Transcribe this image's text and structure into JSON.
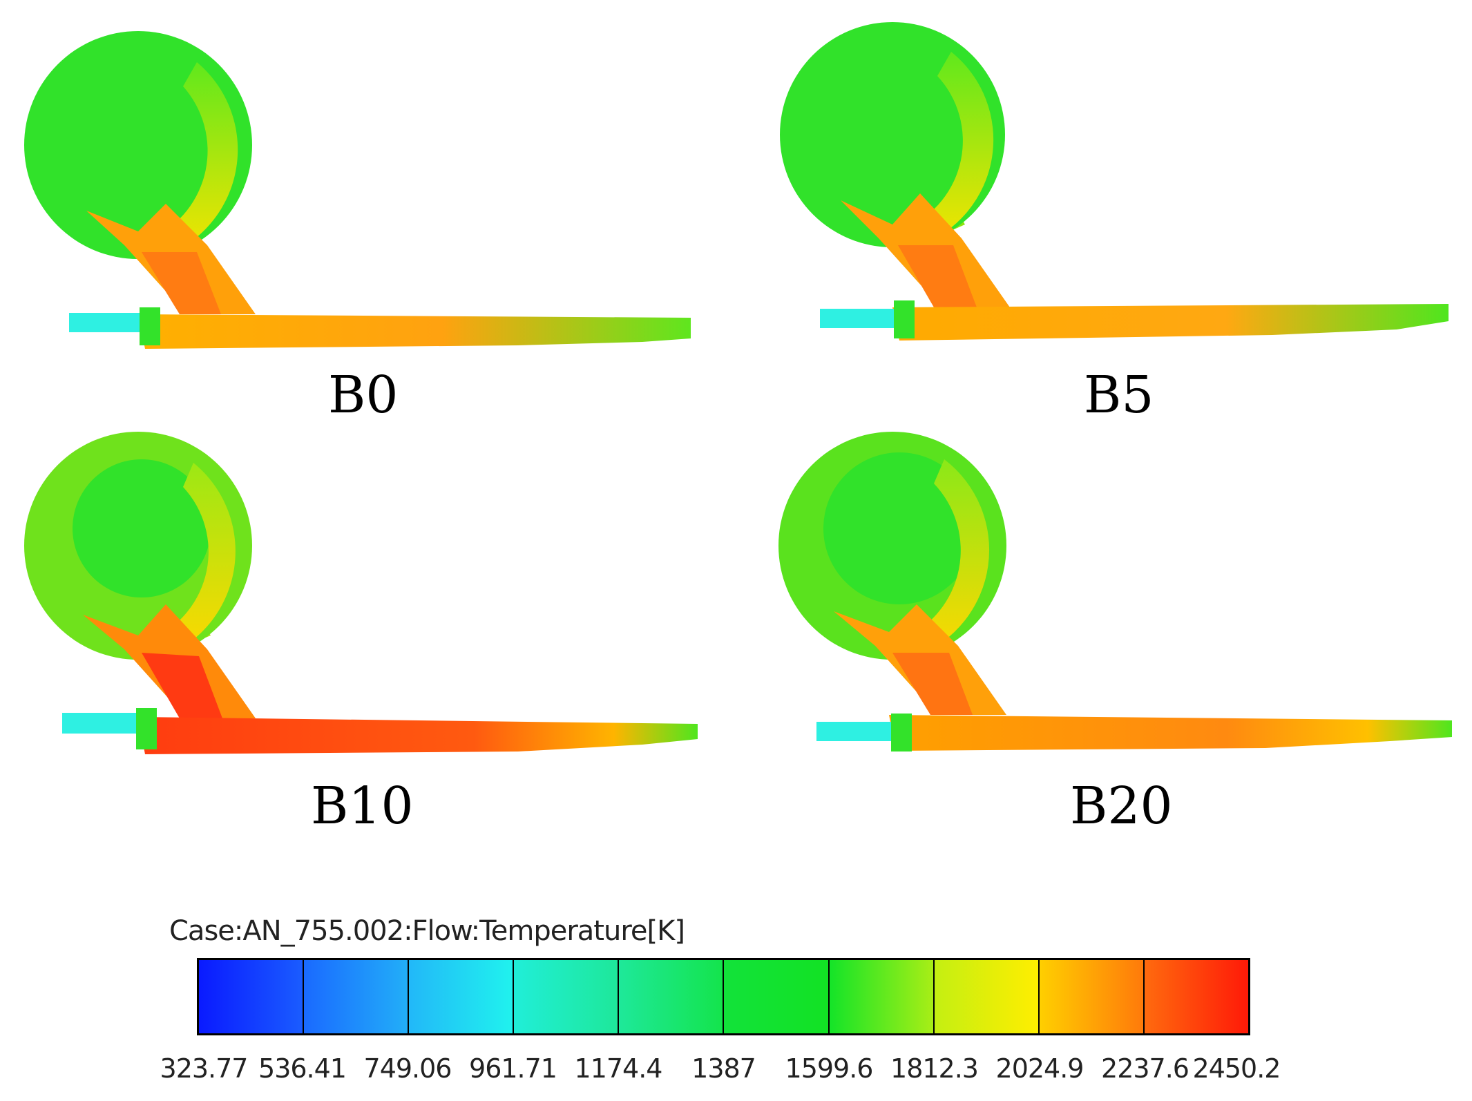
{
  "panels": [
    {
      "label": "B0",
      "flame": "orange"
    },
    {
      "label": "B5",
      "flame": "orange"
    },
    {
      "label": "B10",
      "flame": "red"
    },
    {
      "label": "B20",
      "flame": "orange"
    }
  ],
  "legend": {
    "title": "Case:AN_755.002:Flow:Temperature[K]",
    "ticks": [
      "323.77",
      "536.41",
      "749.06",
      "961.71",
      "1174.4",
      "1387",
      "1599.6",
      "1812.3",
      "2024.9",
      "2237.6",
      "2450.2"
    ],
    "segment_colors": [
      [
        "#0a1aff",
        "#1a5cff"
      ],
      [
        "#1a6aff",
        "#22aef8"
      ],
      [
        "#22b8f8",
        "#20f2ee"
      ],
      [
        "#20eed8",
        "#1ee89a"
      ],
      [
        "#1ee89a",
        "#14e44c"
      ],
      [
        "#12e23a",
        "#12e224"
      ],
      [
        "#14e428",
        "#a8ee16"
      ],
      [
        "#c4ef12",
        "#ffee00"
      ],
      [
        "#ffcf00",
        "#ff7a0a"
      ],
      [
        "#ff6a0e",
        "#ff1a08"
      ]
    ]
  },
  "colors": {
    "cool": "#2ef0e2",
    "body": "#2fe12a",
    "warm": "#ffb200",
    "hot": "#ff4a12"
  }
}
